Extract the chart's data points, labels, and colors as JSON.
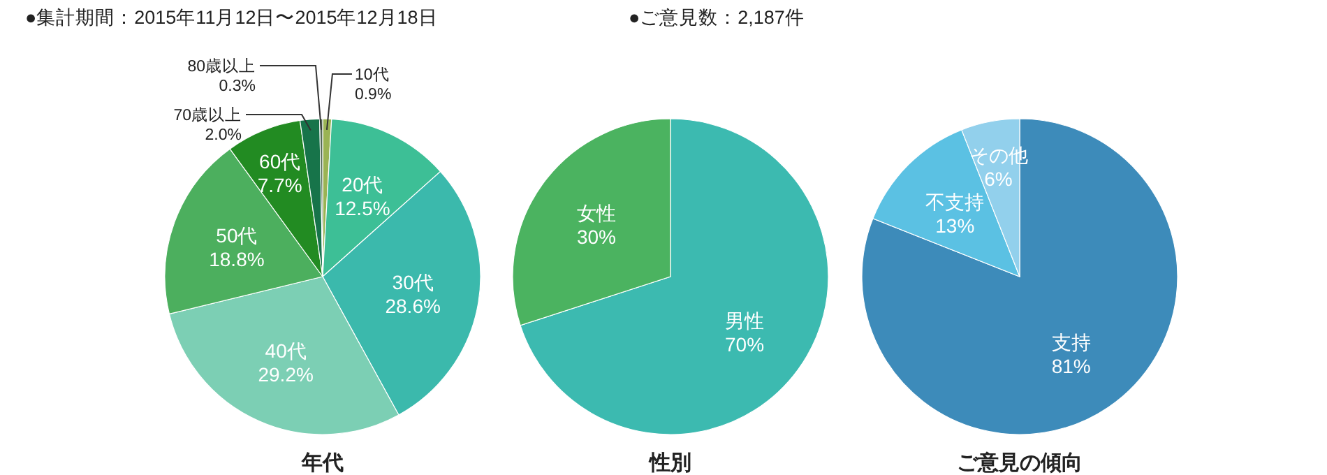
{
  "chart_data": [
    {
      "type": "pie",
      "title": "年代",
      "annotations": [
        "●集計期間：2015年11月12日〜2015年12月18日",
        "●ご意見数：2,187件"
      ],
      "categories": [
        "10代",
        "20代",
        "30代",
        "40代",
        "50代",
        "60代",
        "70歳以上",
        "80歳以上"
      ],
      "values": [
        0.9,
        12.5,
        28.6,
        29.2,
        18.8,
        7.7,
        2.0,
        0.3
      ],
      "value_labels": [
        "0.9%",
        "12.5%",
        "28.6%",
        "29.2%",
        "18.8%",
        "7.7%",
        "2.0%",
        "0.3%"
      ],
      "colors": [
        "#9ab354",
        "#3dbf96",
        "#3bb9ac",
        "#7ccfb4",
        "#4caf5e",
        "#228b22",
        "#17744a",
        "#556b55"
      ]
    },
    {
      "type": "pie",
      "title": "性別",
      "categories": [
        "男性",
        "女性"
      ],
      "values": [
        70,
        30
      ],
      "value_labels": [
        "70%",
        "30%"
      ],
      "colors": [
        "#3cbab0",
        "#4bb360"
      ]
    },
    {
      "type": "pie",
      "title": "ご意見の傾向",
      "categories": [
        "支持",
        "不支持",
        "その他"
      ],
      "values": [
        81,
        13,
        6
      ],
      "value_labels": [
        "81%",
        "13%",
        "6%"
      ],
      "colors": [
        "#3d8bba",
        "#5bc1e3",
        "#92d0ec"
      ]
    }
  ]
}
